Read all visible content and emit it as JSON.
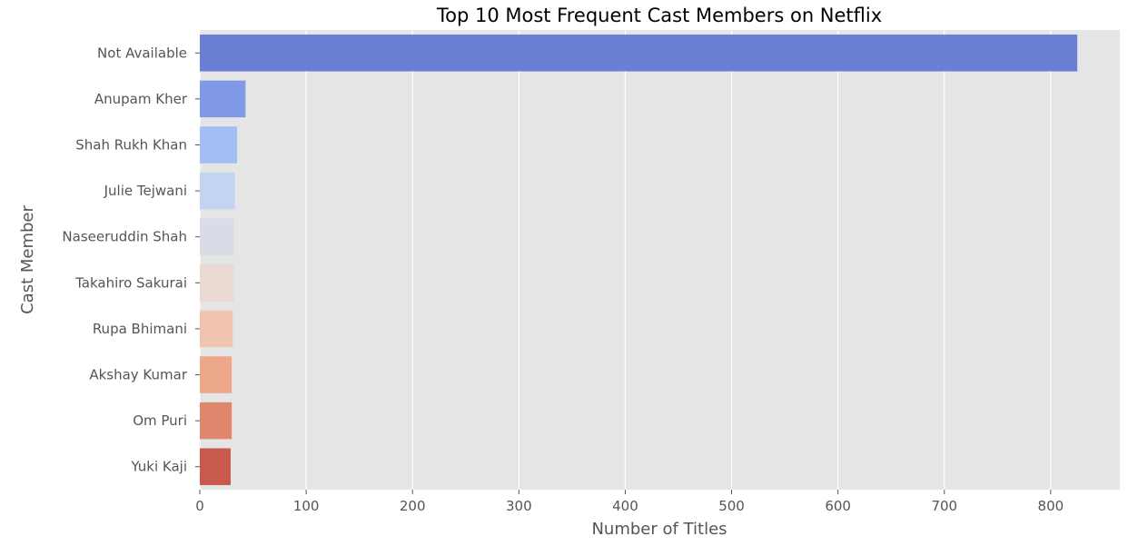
{
  "chart_data": {
    "type": "bar",
    "orientation": "horizontal",
    "title": "Top 10 Most Frequent Cast Members on Netflix",
    "xlabel": "Number of Titles",
    "ylabel": "Cast Member",
    "categories": [
      "Not Available",
      "Anupam Kher",
      "Shah Rukh Khan",
      "Julie Tejwani",
      "Naseeruddin Shah",
      "Takahiro Sakurai",
      "Rupa Bhimani",
      "Akshay Kumar",
      "Om Puri",
      "Yuki Kaji"
    ],
    "values": [
      825,
      43,
      35,
      33,
      32,
      32,
      31,
      30,
      30,
      29
    ],
    "colors": [
      "#6a7fd4",
      "#8099e6",
      "#a3bdf5",
      "#c3d3f2",
      "#d9dce6",
      "#e8d9d2",
      "#f0c4ae",
      "#eda78b",
      "#e0866c",
      "#c9584d"
    ],
    "xticks": [
      0,
      100,
      200,
      300,
      400,
      500,
      600,
      700,
      800
    ],
    "xlim": [
      0,
      865
    ],
    "grid": true,
    "background": "#e5e5e5",
    "grid_color": "#ffffff"
  }
}
